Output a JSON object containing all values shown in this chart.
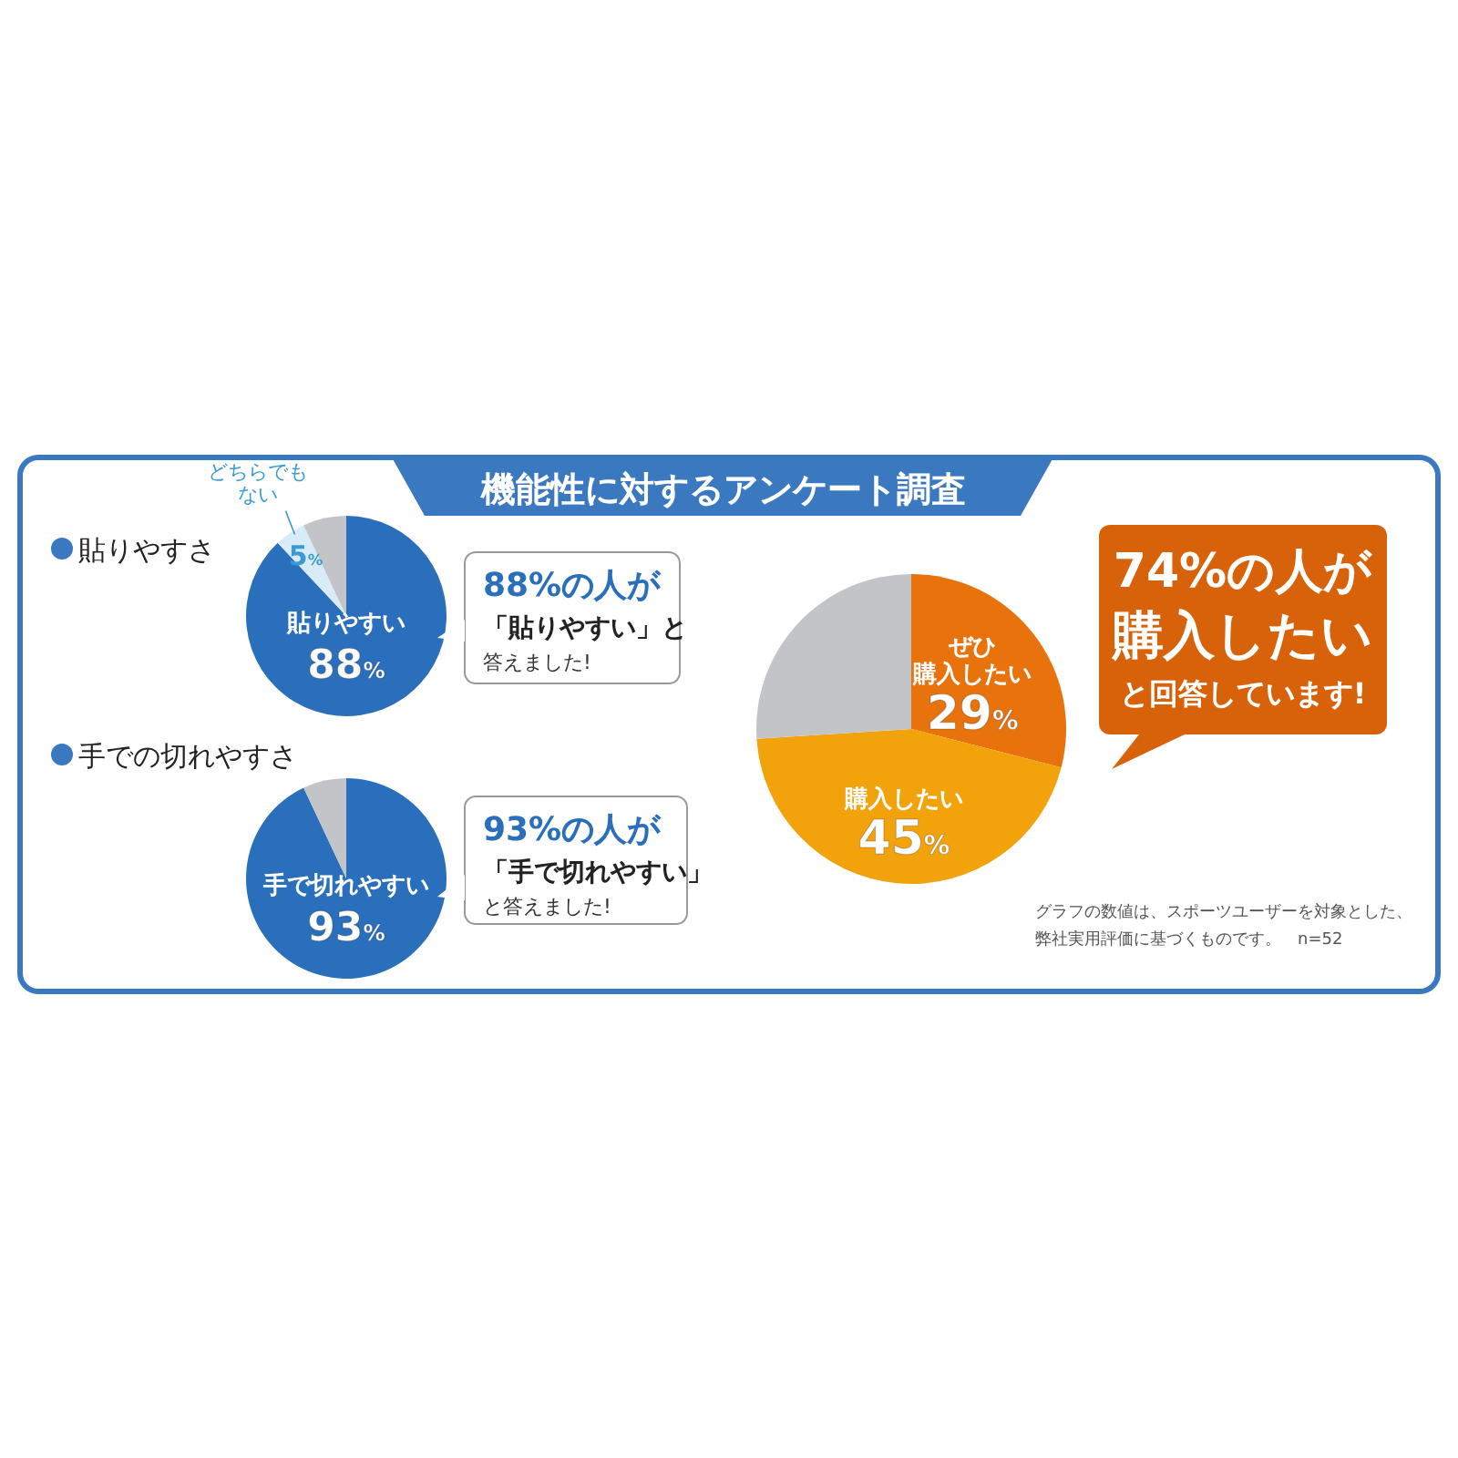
{
  "chart_data": [
    {
      "type": "other",
      "title": "機能性に対するアンケート調査",
      "annotations": [
        "グラフの数値は、スポーツユーザーを対象とした、",
        "弊社実用評価に基づくものです。　n=52"
      ]
    },
    {
      "type": "pie",
      "title": "貼りやすさ",
      "categories": [
        "貼りやすい",
        "どちらでもない",
        null
      ],
      "values": [
        88,
        5,
        7
      ],
      "colors": [
        "#2a6fbb",
        "#d8ecf8",
        "#c2c4c8"
      ],
      "value_labels": [
        "88%",
        "5%",
        null
      ],
      "annotations": [
        "88%の人が",
        "「貼りやすい」と",
        "答えました!"
      ]
    },
    {
      "type": "pie",
      "title": "手での切れやすさ",
      "categories": [
        "手で切れやすい",
        null
      ],
      "values": [
        93,
        7
      ],
      "colors": [
        "#2a6fbb",
        "#c2c4c8"
      ],
      "value_labels": [
        "93%",
        null
      ],
      "annotations": [
        "93%の人が",
        "「手で切れやすい」",
        "と答えました!"
      ]
    },
    {
      "type": "pie",
      "categories": [
        "ぜひ購入したい",
        "購入したい",
        null
      ],
      "values": [
        29,
        45,
        26
      ],
      "colors": [
        "#e8730c",
        "#f2a20a",
        "#c2c4c8"
      ],
      "value_labels": [
        "29%",
        "45%",
        null
      ],
      "annotations": [
        "74%の人が",
        "購入したい",
        "と回答しています!"
      ]
    }
  ]
}
